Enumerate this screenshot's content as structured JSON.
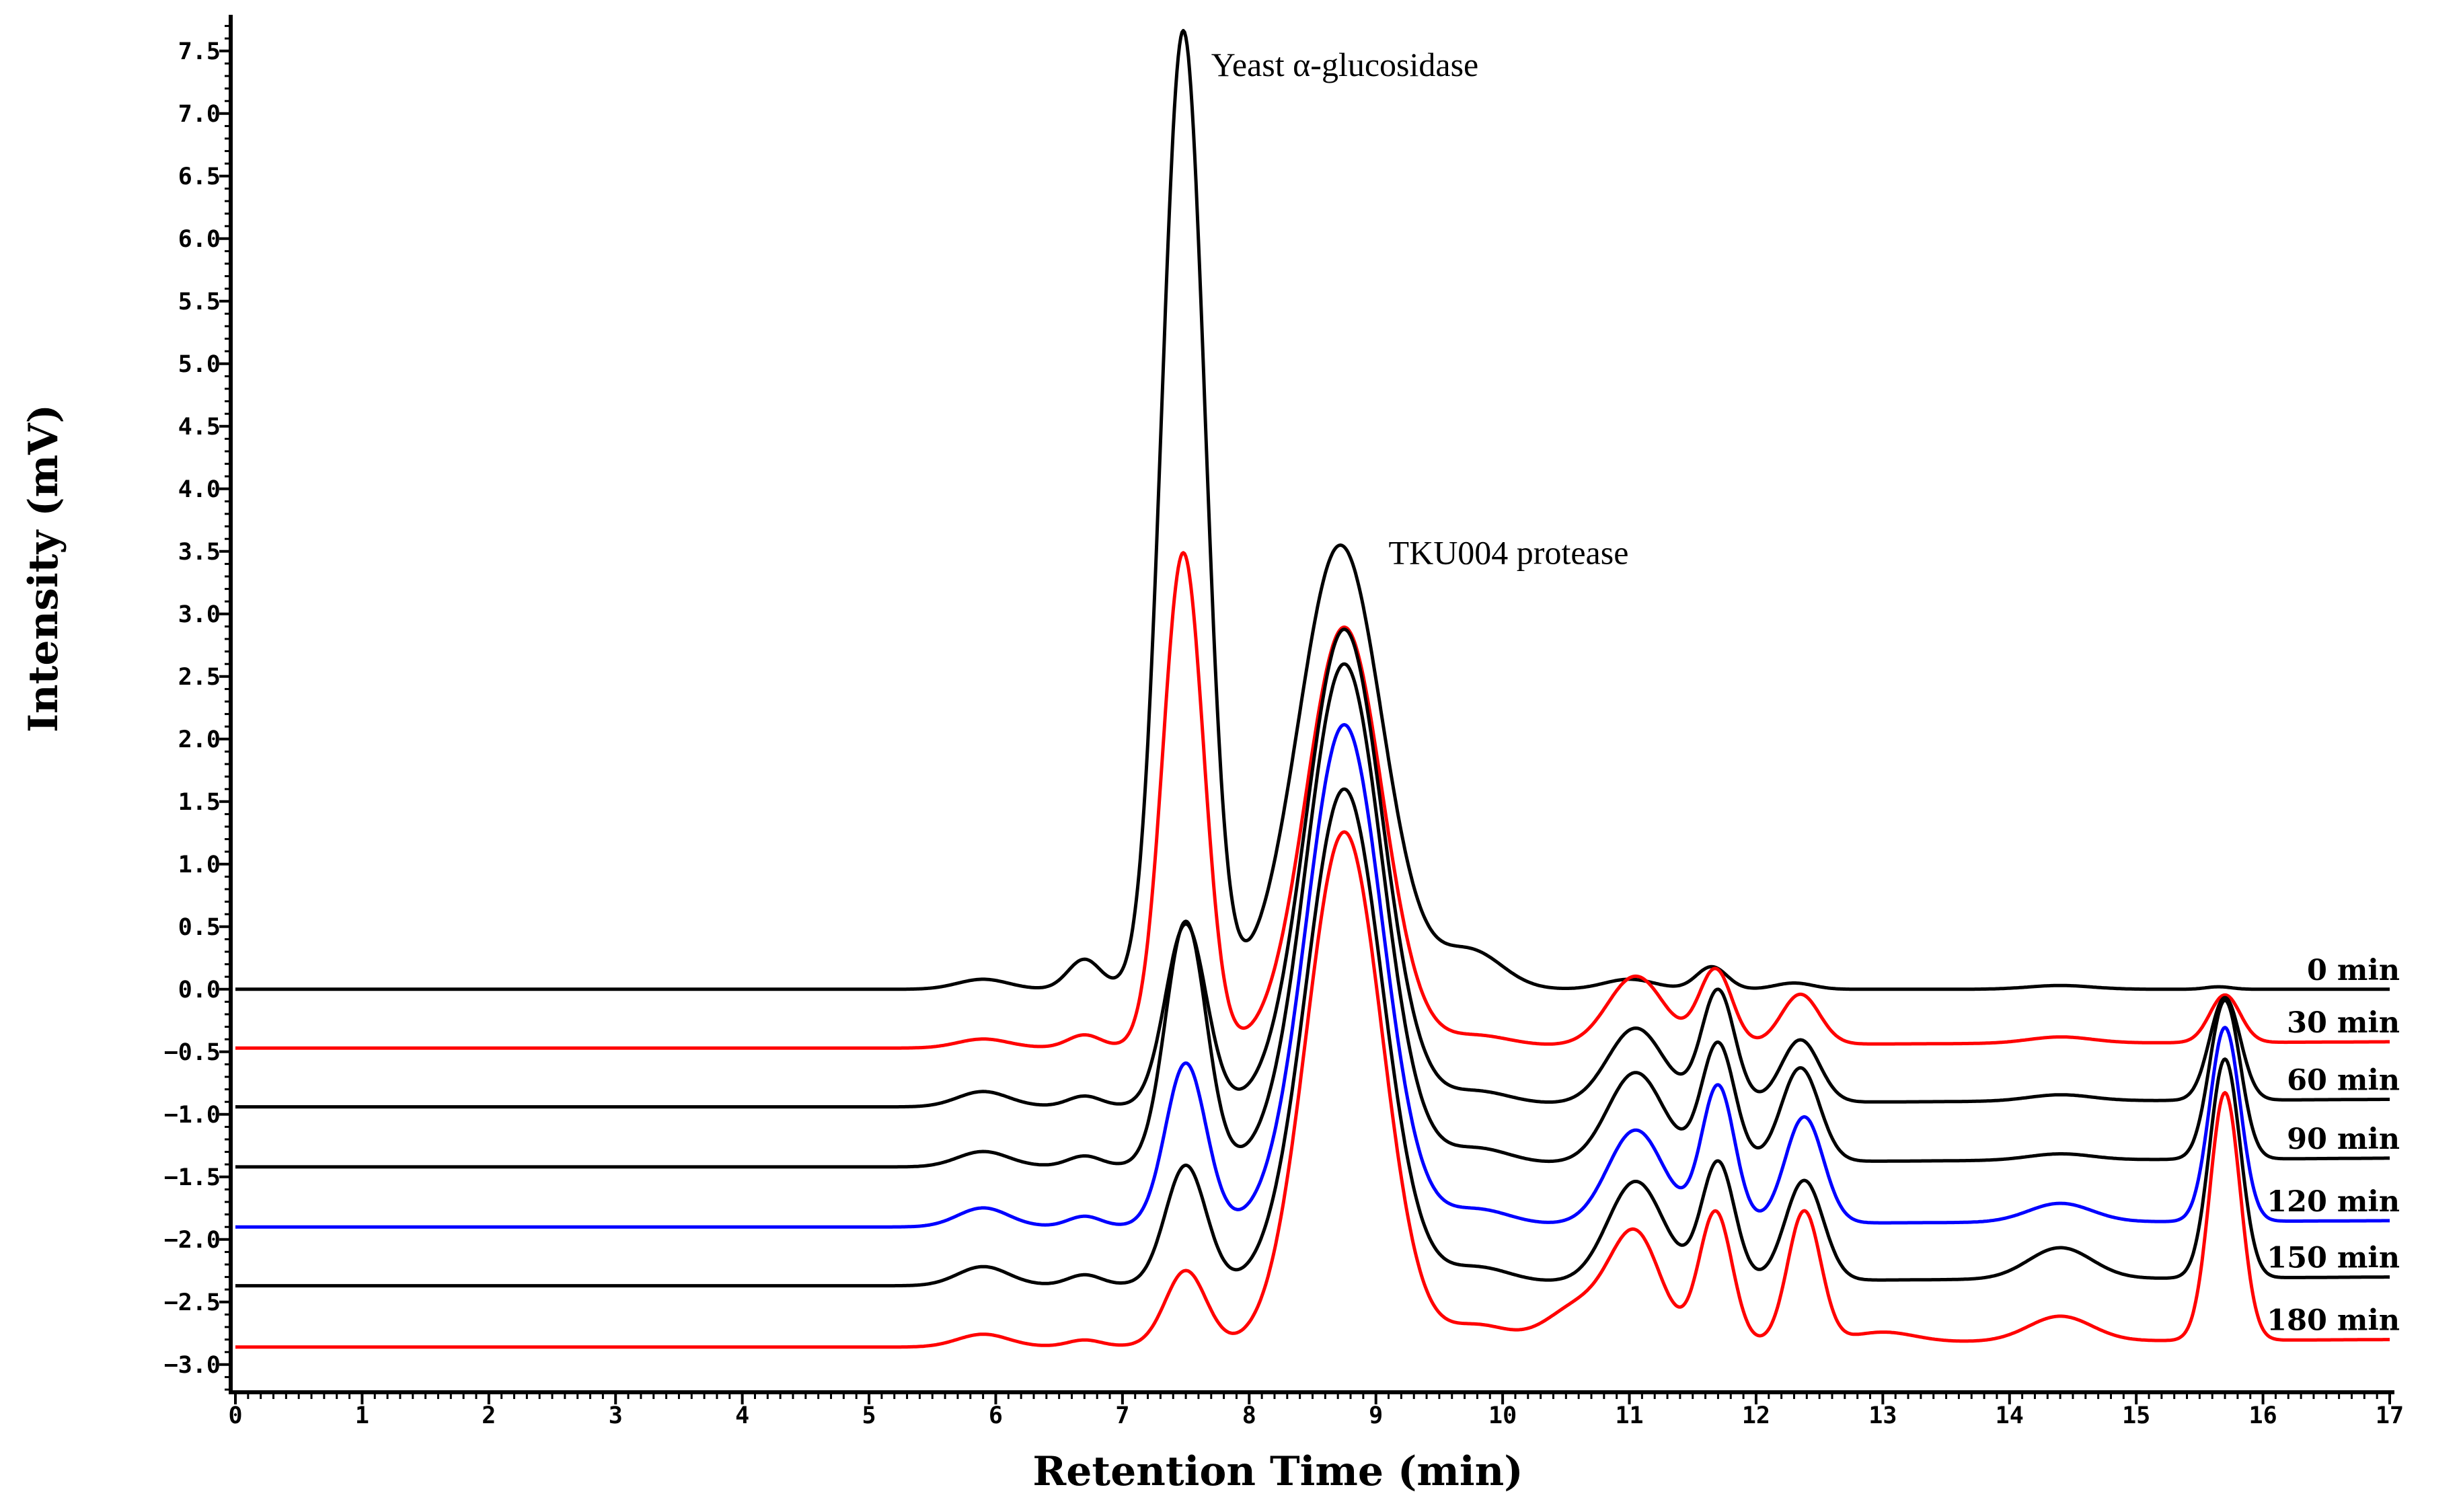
{
  "chart_data": {
    "type": "line",
    "title": "",
    "xlabel": "Retention Time (min)",
    "ylabel": "Intensity (mV)",
    "xlim": [
      0,
      17
    ],
    "ylim": [
      -3.2,
      7.8
    ],
    "x_ticks": [
      "0",
      "1",
      "2",
      "3",
      "4",
      "5",
      "6",
      "7",
      "8",
      "9",
      "10",
      "11",
      "12",
      "13",
      "14",
      "15",
      "16",
      "17"
    ],
    "y_ticks": [
      "7.5",
      "7.0",
      "6.5",
      "6.0",
      "5.5",
      "5.0",
      "4.5",
      "4.0",
      "3.5",
      "3.0",
      "2.5",
      "2.0",
      "1.5",
      "1.0",
      "0.5",
      "0.0",
      "-0.5",
      "-1.0",
      "-1.5",
      "-2.0",
      "-2.5",
      "-3.0"
    ],
    "annotations": [
      {
        "text": "Yeast α-glucosidase",
        "x": 7.7,
        "y": 7.3
      },
      {
        "text": "TKU004 protease",
        "x": 9.1,
        "y": 3.4
      }
    ],
    "series": [
      {
        "name": "0 min",
        "color": "#000000",
        "baseline": 0.0,
        "end": 0.0,
        "peaks": [
          [
            5.9,
            0.08,
            0.2
          ],
          [
            6.7,
            0.24,
            0.13
          ],
          [
            7.48,
            7.66,
            0.17
          ],
          [
            8.72,
            3.55,
            0.33
          ],
          [
            9.75,
            0.3,
            0.25
          ],
          [
            11.0,
            0.08,
            0.2
          ],
          [
            11.65,
            0.18,
            0.12
          ],
          [
            12.3,
            0.05,
            0.15
          ],
          [
            14.4,
            0.03,
            0.25
          ],
          [
            15.65,
            0.02,
            0.1
          ]
        ]
      },
      {
        "name": "30 min",
        "color": "#ff0000",
        "baseline": -0.47,
        "end": -0.42,
        "peaks": [
          [
            5.9,
            0.07,
            0.2
          ],
          [
            6.7,
            0.1,
            0.13
          ],
          [
            7.48,
            3.95,
            0.16
          ],
          [
            8.75,
            3.35,
            0.3
          ],
          [
            9.8,
            0.08,
            0.25
          ],
          [
            11.05,
            0.55,
            0.22
          ],
          [
            11.68,
            0.6,
            0.13
          ],
          [
            12.35,
            0.4,
            0.15
          ],
          [
            14.4,
            0.05,
            0.25
          ],
          [
            15.7,
            0.38,
            0.12
          ]
        ]
      },
      {
        "name": "60 min",
        "color": "#000000",
        "baseline": -0.94,
        "end": -0.88,
        "peaks": [
          [
            5.9,
            0.12,
            0.2
          ],
          [
            6.7,
            0.08,
            0.13
          ],
          [
            7.5,
            1.45,
            0.16
          ],
          [
            8.75,
            3.8,
            0.3
          ],
          [
            9.8,
            0.1,
            0.25
          ],
          [
            11.05,
            0.6,
            0.22
          ],
          [
            11.7,
            0.9,
            0.13
          ],
          [
            12.35,
            0.5,
            0.15
          ],
          [
            14.4,
            0.05,
            0.25
          ],
          [
            15.7,
            0.82,
            0.12
          ]
        ]
      },
      {
        "name": "90 min",
        "color": "#000000",
        "baseline": -1.42,
        "end": -1.35,
        "peaks": [
          [
            5.9,
            0.12,
            0.2
          ],
          [
            6.7,
            0.08,
            0.13
          ],
          [
            7.5,
            1.95,
            0.16
          ],
          [
            8.75,
            4.0,
            0.3
          ],
          [
            9.8,
            0.12,
            0.25
          ],
          [
            11.05,
            0.72,
            0.22
          ],
          [
            11.7,
            0.95,
            0.13
          ],
          [
            12.35,
            0.75,
            0.15
          ],
          [
            14.4,
            0.05,
            0.25
          ],
          [
            15.7,
            1.27,
            0.12
          ]
        ]
      },
      {
        "name": "120 min",
        "color": "#0000ff",
        "baseline": -1.9,
        "end": -1.85,
        "peaks": [
          [
            5.9,
            0.15,
            0.2
          ],
          [
            6.7,
            0.08,
            0.13
          ],
          [
            7.5,
            1.3,
            0.16
          ],
          [
            8.75,
            4.0,
            0.3
          ],
          [
            9.8,
            0.12,
            0.25
          ],
          [
            11.05,
            0.75,
            0.22
          ],
          [
            11.7,
            1.1,
            0.13
          ],
          [
            12.38,
            0.85,
            0.15
          ],
          [
            14.4,
            0.15,
            0.25
          ],
          [
            15.7,
            1.55,
            0.12
          ]
        ]
      },
      {
        "name": "150 min",
        "color": "#000000",
        "baseline": -2.37,
        "end": -2.3,
        "peaks": [
          [
            5.9,
            0.15,
            0.2
          ],
          [
            6.7,
            0.08,
            0.13
          ],
          [
            7.5,
            0.95,
            0.16
          ],
          [
            8.75,
            3.95,
            0.3
          ],
          [
            9.8,
            0.12,
            0.25
          ],
          [
            11.05,
            0.8,
            0.22
          ],
          [
            11.7,
            0.95,
            0.13
          ],
          [
            12.38,
            0.8,
            0.15
          ],
          [
            14.4,
            0.25,
            0.25
          ],
          [
            15.7,
            1.75,
            0.12
          ]
        ]
      },
      {
        "name": "180 min",
        "color": "#ff0000",
        "baseline": -2.86,
        "end": -2.8,
        "peaks": [
          [
            5.9,
            0.1,
            0.2
          ],
          [
            6.7,
            0.05,
            0.13
          ],
          [
            7.5,
            0.6,
            0.16
          ],
          [
            8.75,
            4.1,
            0.3
          ],
          [
            9.8,
            0.15,
            0.25
          ],
          [
            10.6,
            0.3,
            0.25
          ],
          [
            11.05,
            0.85,
            0.2
          ],
          [
            11.68,
            1.05,
            0.13
          ],
          [
            12.38,
            1.05,
            0.13
          ],
          [
            13.0,
            0.08,
            0.25
          ],
          [
            14.4,
            0.2,
            0.25
          ],
          [
            15.7,
            1.98,
            0.12
          ]
        ]
      }
    ]
  }
}
